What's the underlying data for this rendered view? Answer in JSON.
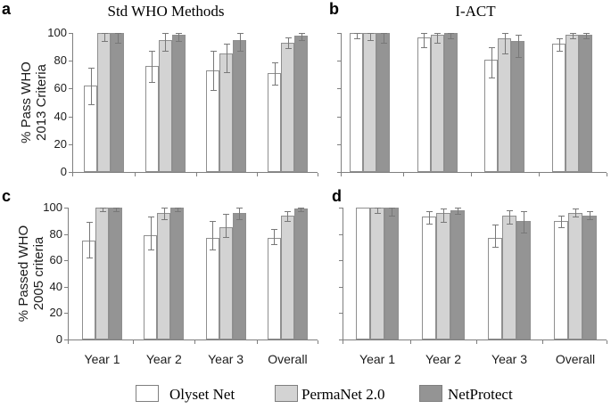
{
  "figure": {
    "panels": [
      {
        "letter": "a",
        "title": "Std WHO Methods",
        "ylabel_line1": "% Pass WHO",
        "ylabel_line2": "2013 Criteria"
      },
      {
        "letter": "b",
        "title": "I-ACT"
      },
      {
        "letter": "c",
        "ylabel_line1": "% Passed WHO",
        "ylabel_line2": "2005 criteria"
      },
      {
        "letter": "d"
      }
    ]
  },
  "legend": {
    "items": [
      {
        "label": "Olyset Net",
        "color": "#ffffff"
      },
      {
        "label": "PermaNet 2.0",
        "color": "#d3d3d3"
      },
      {
        "label": "NetProtect",
        "color": "#949494"
      }
    ],
    "border_color": "#7f7f7f"
  },
  "chart_data": [
    {
      "id": "a",
      "type": "bar",
      "title": "Std WHO Methods",
      "ylabel": "% Pass WHO 2013 Criteria",
      "categories": [
        "Year 1",
        "Year 2",
        "Year 3",
        "Overall"
      ],
      "series": [
        {
          "name": "Olyset Net",
          "values": [
            62,
            76,
            73,
            71
          ],
          "err_low": [
            49,
            65,
            59,
            63
          ],
          "err_high": [
            75,
            87,
            87,
            79
          ]
        },
        {
          "name": "PermaNet 2.0",
          "values": [
            100,
            95,
            85,
            93
          ],
          "err_low": [
            94,
            87,
            72,
            89
          ],
          "err_high": [
            100,
            100,
            92,
            97
          ]
        },
        {
          "name": "NetProtect",
          "values": [
            100,
            99,
            95,
            98
          ],
          "err_low": [
            93,
            94,
            87,
            95
          ],
          "err_high": [
            100,
            100,
            100,
            100
          ]
        }
      ],
      "ylim": [
        0,
        100
      ],
      "yticks": [
        0,
        20,
        40,
        60,
        80,
        100
      ],
      "show_ytick_labels": true,
      "show_xtick_labels": false,
      "grid": false,
      "legend_position": "bottom"
    },
    {
      "id": "b",
      "type": "bar",
      "title": "I-ACT",
      "ylabel": "% Pass WHO 2013 Criteria",
      "categories": [
        "Year 1",
        "Year 2",
        "Year 3",
        "Overall"
      ],
      "series": [
        {
          "name": "Olyset Net",
          "values": [
            100,
            97,
            81,
            92
          ],
          "err_low": [
            96,
            90,
            68,
            87
          ],
          "err_high": [
            100,
            100,
            90,
            96
          ]
        },
        {
          "name": "PermaNet 2.0",
          "values": [
            100,
            99,
            96,
            99
          ],
          "err_low": [
            95,
            93,
            85,
            96
          ],
          "err_high": [
            100,
            100,
            100,
            100
          ]
        },
        {
          "name": "NetProtect",
          "values": [
            100,
            100,
            94,
            99
          ],
          "err_low": [
            93,
            96,
            83,
            96
          ],
          "err_high": [
            100,
            100,
            99,
            100
          ]
        }
      ],
      "ylim": [
        0,
        100
      ],
      "yticks": [
        0,
        20,
        40,
        60,
        80,
        100
      ],
      "show_ytick_labels": false,
      "show_xtick_labels": false,
      "grid": false,
      "legend_position": "bottom"
    },
    {
      "id": "c",
      "type": "bar",
      "title": "",
      "ylabel": "% Passed WHO 2005 criteria",
      "categories": [
        "Year 1",
        "Year 2",
        "Year 3",
        "Overall"
      ],
      "series": [
        {
          "name": "Olyset Net",
          "values": [
            75,
            79,
            77,
            77
          ],
          "err_low": [
            62,
            68,
            68,
            72
          ],
          "err_high": [
            89,
            93,
            90,
            84
          ]
        },
        {
          "name": "PermaNet 2.0",
          "values": [
            100,
            96,
            85,
            94
          ],
          "err_low": [
            97,
            91,
            78,
            90
          ],
          "err_high": [
            100,
            100,
            95,
            97
          ]
        },
        {
          "name": "NetProtect",
          "values": [
            100,
            100,
            96,
            99
          ],
          "err_low": [
            97,
            97,
            91,
            97
          ],
          "err_high": [
            100,
            100,
            100,
            100
          ]
        }
      ],
      "ylim": [
        0,
        100
      ],
      "yticks": [
        0,
        20,
        40,
        60,
        80,
        100
      ],
      "show_ytick_labels": true,
      "show_xtick_labels": true,
      "grid": false,
      "legend_position": "bottom"
    },
    {
      "id": "d",
      "type": "bar",
      "title": "",
      "ylabel": "% Passed WHO 2005 criteria",
      "categories": [
        "Year 1",
        "Year 2",
        "Year 3",
        "Overall"
      ],
      "series": [
        {
          "name": "Olyset Net",
          "values": [
            100,
            93,
            77,
            90
          ],
          "err_low": [
            100,
            88,
            70,
            85
          ],
          "err_high": [
            100,
            97,
            87,
            94
          ]
        },
        {
          "name": "PermaNet 2.0",
          "values": [
            100,
            96,
            94,
            96
          ],
          "err_low": [
            96,
            89,
            88,
            93
          ],
          "err_high": [
            100,
            99,
            98,
            99
          ]
        },
        {
          "name": "NetProtect",
          "values": [
            100,
            98,
            90,
            94
          ],
          "err_low": [
            94,
            95,
            81,
            91
          ],
          "err_high": [
            100,
            100,
            97,
            97
          ]
        }
      ],
      "ylim": [
        0,
        100
      ],
      "yticks": [
        0,
        20,
        40,
        60,
        80,
        100
      ],
      "show_ytick_labels": false,
      "show_xtick_labels": true,
      "grid": false,
      "legend_position": "bottom"
    }
  ]
}
